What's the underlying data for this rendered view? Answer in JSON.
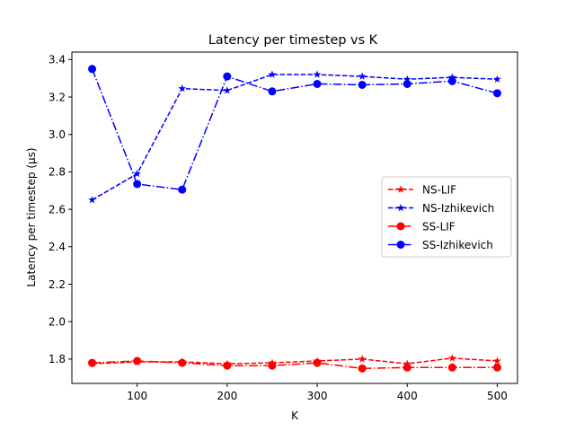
{
  "chart_data": {
    "type": "line",
    "title": "Latency per timestep vs K",
    "xlabel": "K",
    "ylabel": "Latency per timestep (µs)",
    "x": [
      50,
      100,
      150,
      200,
      250,
      300,
      350,
      400,
      450,
      500
    ],
    "xlim": [
      27.5,
      522.5
    ],
    "ylim": [
      1.67,
      3.44
    ],
    "xticks": [
      100,
      200,
      300,
      400,
      500
    ],
    "yticks": [
      1.8,
      2.0,
      2.2,
      2.4,
      2.6,
      2.8,
      3.0,
      3.2,
      3.4
    ],
    "grid": false,
    "legend_position": "center-right",
    "series": [
      {
        "name": "NS-LIF",
        "color": "#ff0000",
        "linestyle": "dashed",
        "marker": "star",
        "values": [
          1.775,
          1.785,
          1.785,
          1.775,
          1.78,
          1.79,
          1.8,
          1.775,
          1.805,
          1.79
        ]
      },
      {
        "name": "NS-Izhikevich",
        "color": "#0000ff",
        "linestyle": "dashed",
        "marker": "star",
        "values": [
          2.65,
          2.79,
          3.245,
          3.235,
          3.32,
          3.32,
          3.31,
          3.295,
          3.305,
          3.295
        ]
      },
      {
        "name": "SS-LIF",
        "color": "#ff0000",
        "linestyle": "dashdot",
        "marker": "circle",
        "values": [
          1.78,
          1.79,
          1.78,
          1.765,
          1.765,
          1.78,
          1.75,
          1.755,
          1.755,
          1.755
        ]
      },
      {
        "name": "SS-Izhikevich",
        "color": "#0000ff",
        "linestyle": "dashdot",
        "marker": "circle",
        "values": [
          3.35,
          2.735,
          2.705,
          3.31,
          3.23,
          3.27,
          3.265,
          3.27,
          3.285,
          3.22
        ]
      }
    ]
  }
}
